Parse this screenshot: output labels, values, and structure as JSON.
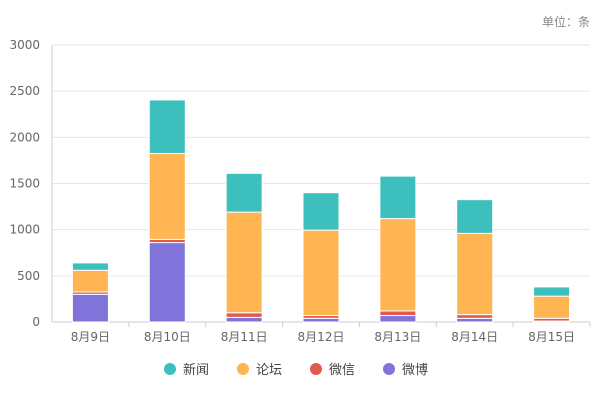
{
  "unit_label": "单位：条",
  "chart_data": {
    "type": "bar",
    "stacked": true,
    "categories": [
      "8月9日",
      "8月10日",
      "8月11日",
      "8月12日",
      "8月13日",
      "8月14日",
      "8月15日"
    ],
    "series": [
      {
        "name": "微博",
        "color": "#8073d9",
        "values": [
          300,
          860,
          50,
          40,
          70,
          40,
          10
        ]
      },
      {
        "name": "微信",
        "color": "#e05b4d",
        "values": [
          25,
          35,
          50,
          30,
          50,
          40,
          30
        ]
      },
      {
        "name": "论坛",
        "color": "#ffb552",
        "values": [
          235,
          930,
          1090,
          925,
          1000,
          880,
          240
        ]
      },
      {
        "name": "新闻",
        "color": "#3dbfbd",
        "values": [
          80,
          580,
          420,
          405,
          460,
          365,
          100
        ]
      }
    ],
    "ylim": [
      0,
      3000
    ],
    "y_ticks": [
      0,
      500,
      1000,
      1500,
      2000,
      2500,
      3000
    ],
    "grid": true,
    "legend": {
      "position": "bottom",
      "order": [
        "新闻",
        "论坛",
        "微信",
        "微博"
      ]
    }
  }
}
